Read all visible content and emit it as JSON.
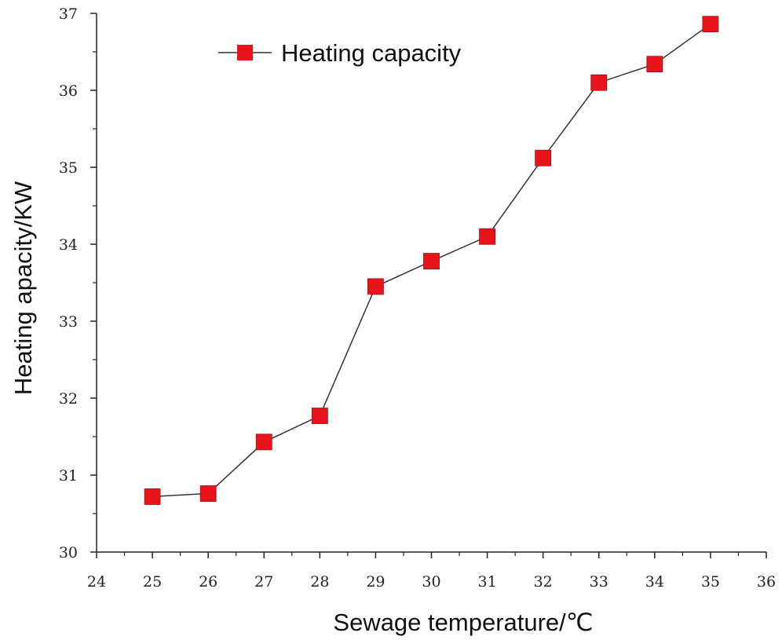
{
  "chart_data": {
    "type": "line",
    "title": "",
    "xlabel": "Sewage temperature/℃",
    "ylabel": "Heating apacity/KW",
    "xlim": [
      24,
      36
    ],
    "ylim": [
      30,
      37
    ],
    "xticks": [
      "24",
      "25",
      "26",
      "27",
      "28",
      "29",
      "30",
      "31",
      "32",
      "33",
      "34",
      "35",
      "36"
    ],
    "yticks": [
      "30",
      "31",
      "32",
      "33",
      "34",
      "35",
      "36",
      "37"
    ],
    "grid": false,
    "legend_position": "top-left",
    "series": [
      {
        "name": "Heating capacity",
        "marker": "square",
        "color": "#e8141c",
        "line_color": "#333333",
        "x": [
          25,
          26,
          27,
          28,
          29,
          30,
          31,
          32,
          33,
          34,
          35
        ],
        "values": [
          30.72,
          30.76,
          31.43,
          31.77,
          33.45,
          33.78,
          34.1,
          35.12,
          36.1,
          36.34,
          36.86
        ]
      }
    ]
  }
}
